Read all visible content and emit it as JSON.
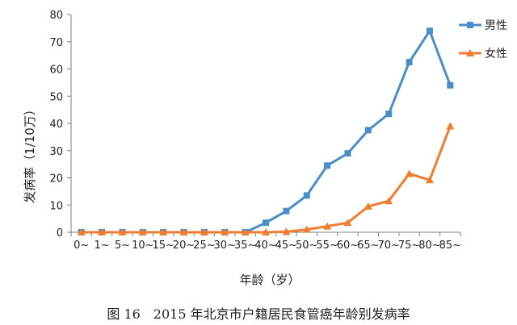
{
  "chart_data": {
    "type": "line",
    "categories": [
      "0~",
      "1~",
      "5~",
      "10~",
      "15~",
      "20~",
      "25~",
      "30~",
      "35~",
      "40~",
      "45~",
      "50~",
      "55~",
      "60~",
      "65~",
      "70~",
      "75~",
      "80~",
      "85~"
    ],
    "series": [
      {
        "name": "男性",
        "color": "#4a8ec9",
        "marker": "square",
        "values": [
          0,
          0,
          0,
          0,
          0,
          0,
          0,
          0,
          0,
          3.5,
          7.8,
          13.5,
          24.5,
          29,
          37.5,
          43.5,
          62.5,
          74,
          54
        ]
      },
      {
        "name": "女性",
        "color": "#ee7d31",
        "marker": "triangle",
        "values": [
          0,
          0,
          0,
          0,
          0,
          0,
          0,
          0,
          0,
          0,
          0.2,
          1,
          2.2,
          3.5,
          9.5,
          11.5,
          21.5,
          19.2,
          39
        ]
      }
    ],
    "ylabel": "发病率（1/10万）",
    "xlabel": "年龄（岁）",
    "ylim": [
      0,
      80
    ],
    "yticks": [
      0,
      10,
      20,
      30,
      40,
      50,
      60,
      70,
      80
    ],
    "grid": false,
    "legend_position": "top-right"
  },
  "caption": "图 16　2015 年北京市户籍居民食管癌年龄别发病率"
}
